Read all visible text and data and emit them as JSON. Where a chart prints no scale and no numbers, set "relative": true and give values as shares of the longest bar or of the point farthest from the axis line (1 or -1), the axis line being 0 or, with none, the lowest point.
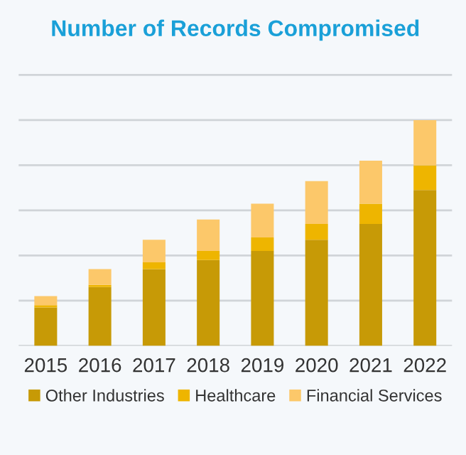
{
  "chart_data": {
    "type": "bar",
    "title": "Number of Records Compromised",
    "categories": [
      "2015",
      "2016",
      "2017",
      "2018",
      "2019",
      "2020",
      "2021",
      "2022"
    ],
    "stacked": true,
    "relative": true,
    "grid": "y",
    "legend": "bottom",
    "series": [
      {
        "name": "Other Industries",
        "color": "#c79a06",
        "values": [
          0.17,
          0.26,
          0.34,
          0.38,
          0.42,
          0.47,
          0.54,
          0.69
        ]
      },
      {
        "name": "Healthcare",
        "color": "#eeb500",
        "values": [
          0.01,
          0.01,
          0.03,
          0.04,
          0.06,
          0.07,
          0.09,
          0.11
        ]
      },
      {
        "name": "Financial Services",
        "color": "#fcc86a",
        "values": [
          0.04,
          0.07,
          0.1,
          0.14,
          0.15,
          0.19,
          0.19,
          0.2
        ]
      }
    ]
  }
}
